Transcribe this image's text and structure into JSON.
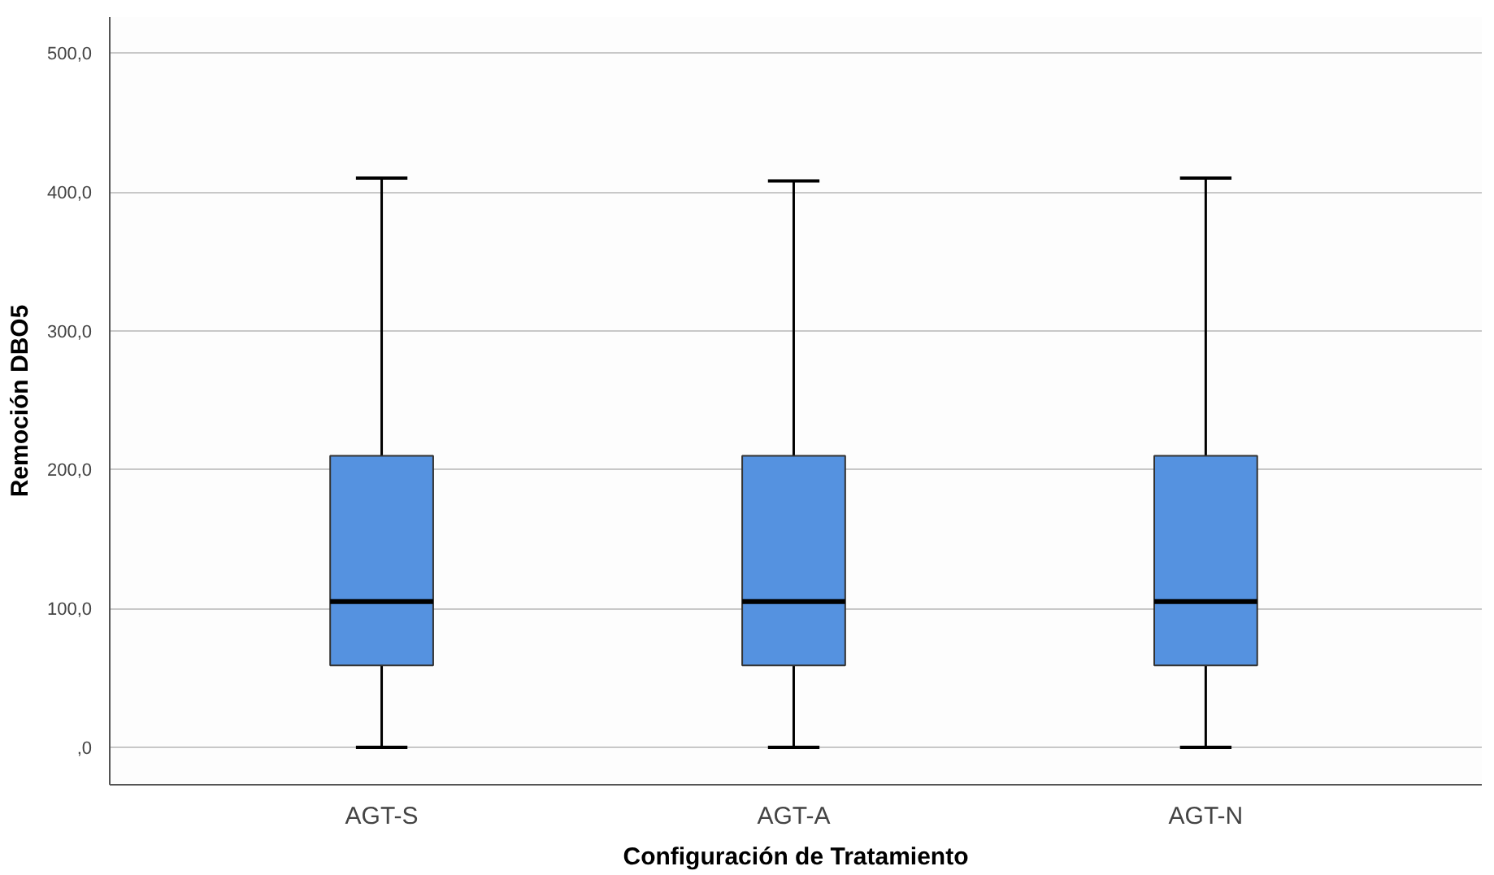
{
  "chart_data": {
    "type": "box",
    "xlabel": "Configuración de Tratamiento",
    "ylabel": "Remoción DBO5",
    "categories": [
      "AGT-S",
      "AGT-A",
      "AGT-N"
    ],
    "boxes": [
      {
        "low": 0,
        "q1": 59,
        "median": 105,
        "q3": 210,
        "high": 410
      },
      {
        "low": 0,
        "q1": 59,
        "median": 105,
        "q3": 210,
        "high": 408
      },
      {
        "low": 0,
        "q1": 59,
        "median": 105,
        "q3": 210,
        "high": 410
      }
    ],
    "color": "#5592e0",
    "ylim": [
      -27,
      526
    ],
    "yticks": [
      {
        "value": 0,
        "label": ",0"
      },
      {
        "value": 100,
        "label": "100,0"
      },
      {
        "value": 200,
        "label": "200,0"
      },
      {
        "value": 300,
        "label": "300,0"
      },
      {
        "value": 400,
        "label": "400,0"
      },
      {
        "value": 500,
        "label": "500,0"
      }
    ],
    "grid": "y"
  }
}
